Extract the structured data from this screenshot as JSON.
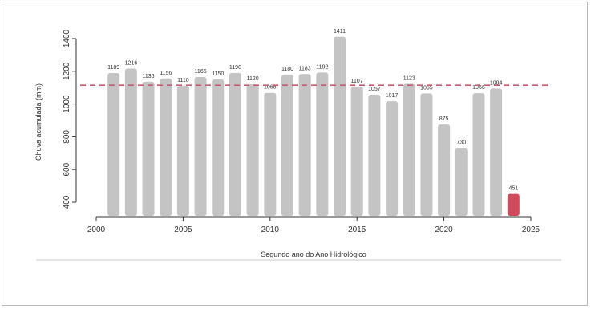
{
  "chart_data": {
    "type": "bar",
    "xlabel": "Segundo ano do Ano Hidrológico",
    "ylabel": "Chuva acumulada (mm)",
    "xlim": [
      2000,
      2025
    ],
    "ylim": [
      400,
      1400
    ],
    "x_ticks": [
      2000,
      2005,
      2010,
      2015,
      2020,
      2025
    ],
    "y_ticks": [
      400,
      600,
      800,
      1000,
      1200,
      1400
    ],
    "reference_line": {
      "value": 1115,
      "style": "dashed",
      "color": "#c85a6e"
    },
    "colors": {
      "bar": "#c4c4c4",
      "highlight": "#cf4b5c"
    },
    "highlight_x": 2024,
    "x": [
      2001,
      2002,
      2003,
      2004,
      2005,
      2006,
      2007,
      2008,
      2009,
      2010,
      2011,
      2012,
      2013,
      2014,
      2015,
      2016,
      2017,
      2018,
      2019,
      2020,
      2021,
      2022,
      2023,
      2024
    ],
    "values": [
      1189,
      1216,
      1136,
      1156,
      1110,
      1165,
      1150,
      1190,
      1120,
      1068,
      1180,
      1183,
      1192,
      1411,
      1107,
      1057,
      1017,
      1123,
      1065,
      875,
      730,
      1066,
      1094,
      451
    ],
    "labels": [
      "1189",
      "1216",
      "1136",
      "1156",
      "1110",
      "1165",
      "1150",
      "1190",
      "1120",
      "1068",
      "1180",
      "1183",
      "1192",
      "1411",
      "1107",
      "1057",
      "1017",
      "1123",
      "1065",
      "875",
      "730",
      "1066",
      "1094",
      "451"
    ]
  }
}
